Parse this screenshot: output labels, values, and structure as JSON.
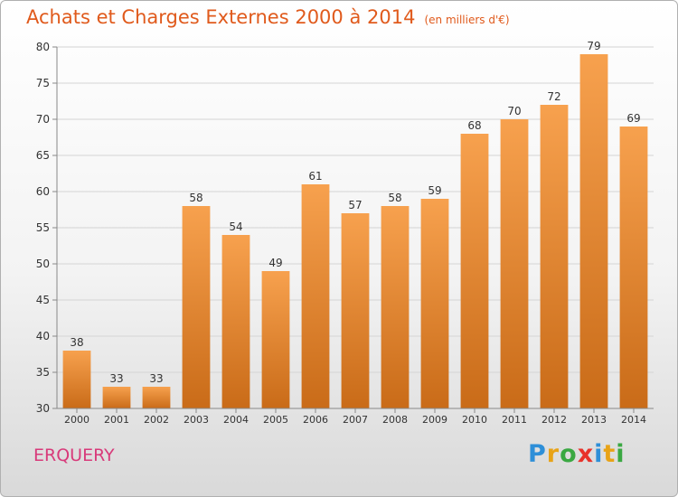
{
  "title": "Achats et Charges Externes 2000 à 2014",
  "unit_label": "(en milliers d'€)",
  "place_name": "ERQUERY",
  "brand": {
    "text": "Proxiti",
    "letter_colors": [
      "#2e8fd8",
      "#e8a317",
      "#3aa842",
      "#e8322a",
      "#2e8fd8",
      "#e8a317",
      "#3aa842"
    ]
  },
  "chart_data": {
    "type": "bar",
    "title": "Achats et Charges Externes 2000 à 2014",
    "subtitle": "(en milliers d'€)",
    "categories": [
      "2000",
      "2001",
      "2002",
      "2003",
      "2004",
      "2005",
      "2006",
      "2007",
      "2008",
      "2009",
      "2010",
      "2011",
      "2012",
      "2013",
      "2014"
    ],
    "values": [
      38,
      33,
      33,
      58,
      54,
      49,
      61,
      57,
      58,
      59,
      68,
      70,
      72,
      79,
      69
    ],
    "ylim": [
      30,
      80
    ],
    "yticks": [
      30,
      35,
      40,
      45,
      50,
      55,
      60,
      65,
      70,
      75,
      80
    ],
    "grid": true,
    "bar_color_top": "#f7a14e",
    "bar_color_bottom": "#c96b18"
  }
}
